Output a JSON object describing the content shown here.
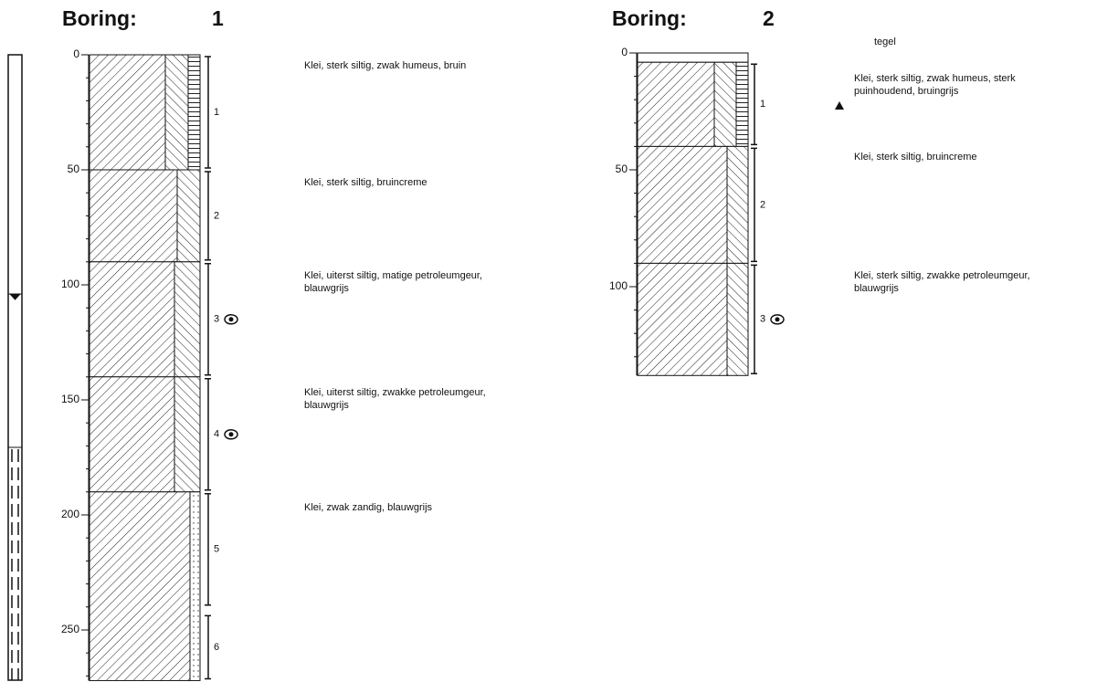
{
  "borings": [
    {
      "label": "Boring:",
      "number": "1",
      "depth_ticks": [
        "0",
        "50",
        "100",
        "150",
        "200",
        "250"
      ],
      "layers": [
        {
          "lines": [
            "Klei, sterk siltig, zwak humeus, bruin"
          ]
        },
        {
          "lines": [
            "Klei, sterk siltig, bruincreme"
          ]
        },
        {
          "lines": [
            "Klei, uiterst siltig, matige petroleumgeur,",
            "blauwgrijs"
          ]
        },
        {
          "lines": [
            "Klei, uiterst siltig, zwakke petroleumgeur,",
            "blauwgrijs"
          ]
        },
        {
          "lines": [
            "Klei, zwak zandig, blauwgrijs"
          ]
        }
      ],
      "samples": [
        "1",
        "2",
        "3",
        "4",
        "5",
        "6"
      ]
    },
    {
      "label": "Boring:",
      "number": "2",
      "depth_ticks": [
        "0",
        "50",
        "100"
      ],
      "layers": [
        {
          "lines": [
            "tegel"
          ]
        },
        {
          "lines": [
            "Klei, sterk siltig, zwak humeus, sterk",
            "puinhoudend, bruingrijs"
          ]
        },
        {
          "lines": [
            "Klei, sterk siltig, bruincreme"
          ]
        },
        {
          "lines": [
            "Klei, sterk siltig, zwakke petroleumgeur,",
            "blauwgrijs"
          ]
        }
      ],
      "samples": [
        "1",
        "2",
        "3"
      ]
    }
  ]
}
